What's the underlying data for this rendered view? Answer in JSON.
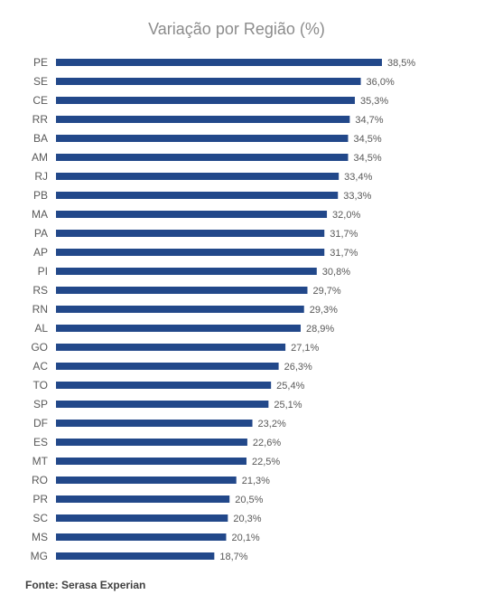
{
  "chart_data": {
    "type": "bar",
    "orientation": "horizontal",
    "title": "Variação por Região (%)",
    "categories": [
      "PE",
      "SE",
      "CE",
      "RR",
      "BA",
      "AM",
      "RJ",
      "PB",
      "MA",
      "PA",
      "AP",
      "PI",
      "RS",
      "RN",
      "AL",
      "GO",
      "AC",
      "TO",
      "SP",
      "DF",
      "ES",
      "MT",
      "RO",
      "PR",
      "SC",
      "MS",
      "MG"
    ],
    "values": [
      38.5,
      36.0,
      35.3,
      34.7,
      34.5,
      34.5,
      33.4,
      33.3,
      32.0,
      31.7,
      31.7,
      30.8,
      29.7,
      29.3,
      28.9,
      27.1,
      26.3,
      25.4,
      25.1,
      23.2,
      22.6,
      22.5,
      21.3,
      20.5,
      20.3,
      20.1,
      18.7
    ],
    "value_labels": [
      "38,5%",
      "36,0%",
      "35,3%",
      "34,7%",
      "34,5%",
      "34,5%",
      "33,4%",
      "33,3%",
      "32,0%",
      "31,7%",
      "31,7%",
      "30,8%",
      "29,7%",
      "29,3%",
      "28,9%",
      "27,1%",
      "26,3%",
      "25,4%",
      "25,1%",
      "23,2%",
      "22,6%",
      "22,5%",
      "21,3%",
      "20,5%",
      "20,3%",
      "20,1%",
      "18,7%"
    ],
    "color": "#22488a",
    "source": "Fonte: Serasa Experian"
  }
}
